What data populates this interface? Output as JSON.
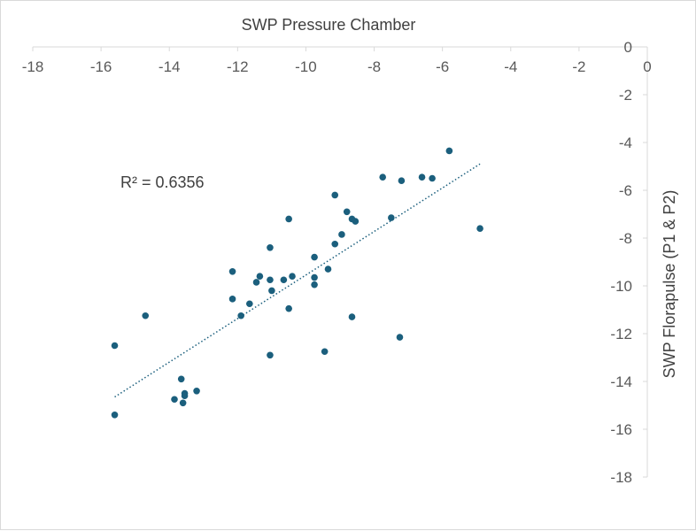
{
  "chart_data": {
    "type": "scatter",
    "title": "SWP Pressure Chamber",
    "xlabel": "",
    "ylabel": "SWP Florapulse (P1 & P2)",
    "xlim": [
      -18,
      0
    ],
    "ylim": [
      -18,
      0
    ],
    "xticks": [
      "-18",
      "-16",
      "-14",
      "-12",
      "-10",
      "-8",
      "-6",
      "-4",
      "-2",
      "0"
    ],
    "yticks": [
      "0",
      "-2",
      "-4",
      "-6",
      "-8",
      "-10",
      "-12",
      "-14",
      "-16",
      "-18"
    ],
    "x_axis_position": "top",
    "y_axis_position": "right",
    "marker_color": "#1b5f7d",
    "trendline": {
      "type": "linear",
      "style": "dotted",
      "color": "#1b5f7d",
      "x_start": -15.6,
      "y_start": -14.65,
      "x_end": -4.9,
      "y_end": -4.9,
      "r_squared_label": "R² = 0.6356"
    },
    "series": [
      {
        "name": "SWP",
        "points": [
          [
            -5.8,
            -4.35
          ],
          [
            -6.3,
            -5.5
          ],
          [
            -6.6,
            -5.45
          ],
          [
            -7.2,
            -5.6
          ],
          [
            -7.75,
            -5.45
          ],
          [
            -4.9,
            -7.6
          ],
          [
            -7.5,
            -7.15
          ],
          [
            -8.55,
            -7.3
          ],
          [
            -8.65,
            -7.2
          ],
          [
            -8.8,
            -6.9
          ],
          [
            -9.15,
            -6.2
          ],
          [
            -8.95,
            -7.85
          ],
          [
            -9.15,
            -8.25
          ],
          [
            -10.5,
            -7.2
          ],
          [
            -11.05,
            -8.4
          ],
          [
            -9.75,
            -8.8
          ],
          [
            -9.35,
            -9.3
          ],
          [
            -9.75,
            -9.65
          ],
          [
            -9.75,
            -9.95
          ],
          [
            -10.4,
            -9.6
          ],
          [
            -10.65,
            -9.75
          ],
          [
            -11.05,
            -9.75
          ],
          [
            -11.35,
            -9.6
          ],
          [
            -11.45,
            -9.85
          ],
          [
            -11.0,
            -10.2
          ],
          [
            -12.15,
            -9.4
          ],
          [
            -12.15,
            -10.55
          ],
          [
            -11.65,
            -10.75
          ],
          [
            -11.9,
            -11.25
          ],
          [
            -10.5,
            -10.95
          ],
          [
            -8.65,
            -11.3
          ],
          [
            -7.25,
            -12.15
          ],
          [
            -9.45,
            -12.75
          ],
          [
            -11.05,
            -12.9
          ],
          [
            -14.7,
            -11.25
          ],
          [
            -15.6,
            -12.5
          ],
          [
            -13.65,
            -13.9
          ],
          [
            -13.2,
            -14.4
          ],
          [
            -13.55,
            -14.5
          ],
          [
            -13.55,
            -14.6
          ],
          [
            -13.85,
            -14.75
          ],
          [
            -13.6,
            -14.9
          ],
          [
            -15.6,
            -15.4
          ]
        ]
      }
    ]
  }
}
